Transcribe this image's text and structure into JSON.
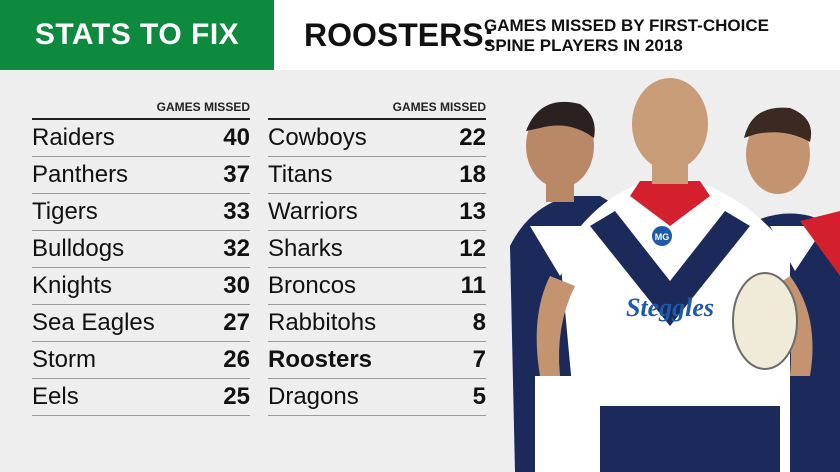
{
  "header": {
    "badge": "STATS TO FIX",
    "team": "ROOSTERS:",
    "subtitle_line1": "GAMES MISSED BY FIRST-CHOICE",
    "subtitle_line2": "SPINE PLAYERS IN 2018"
  },
  "table_left": {
    "column_header": "GAMES MISSED",
    "rows": [
      {
        "team": "Raiders",
        "games": "40"
      },
      {
        "team": "Panthers",
        "games": "37"
      },
      {
        "team": "Tigers",
        "games": "33"
      },
      {
        "team": "Bulldogs",
        "games": "32"
      },
      {
        "team": "Knights",
        "games": "30"
      },
      {
        "team": "Sea Eagles",
        "games": "27"
      },
      {
        "team": "Storm",
        "games": "26"
      },
      {
        "team": "Eels",
        "games": "25"
      }
    ]
  },
  "table_right": {
    "column_header": "GAMES MISSED",
    "rows": [
      {
        "team": "Cowboys",
        "games": "22"
      },
      {
        "team": "Titans",
        "games": "18"
      },
      {
        "team": "Warriors",
        "games": "13"
      },
      {
        "team": "Sharks",
        "games": "12"
      },
      {
        "team": "Broncos",
        "games": "11"
      },
      {
        "team": "Rabbitohs",
        "games": "8"
      },
      {
        "team": "Roosters",
        "games": "7"
      },
      {
        "team": "Dragons",
        "games": "5"
      }
    ]
  },
  "photo": {
    "jersey_sponsor": "Steggles",
    "jersey_logo": "MG"
  },
  "colors": {
    "badge_green": "#0d8a3e",
    "roosters_navy": "#1b2a5a",
    "roosters_red": "#d4202c"
  }
}
